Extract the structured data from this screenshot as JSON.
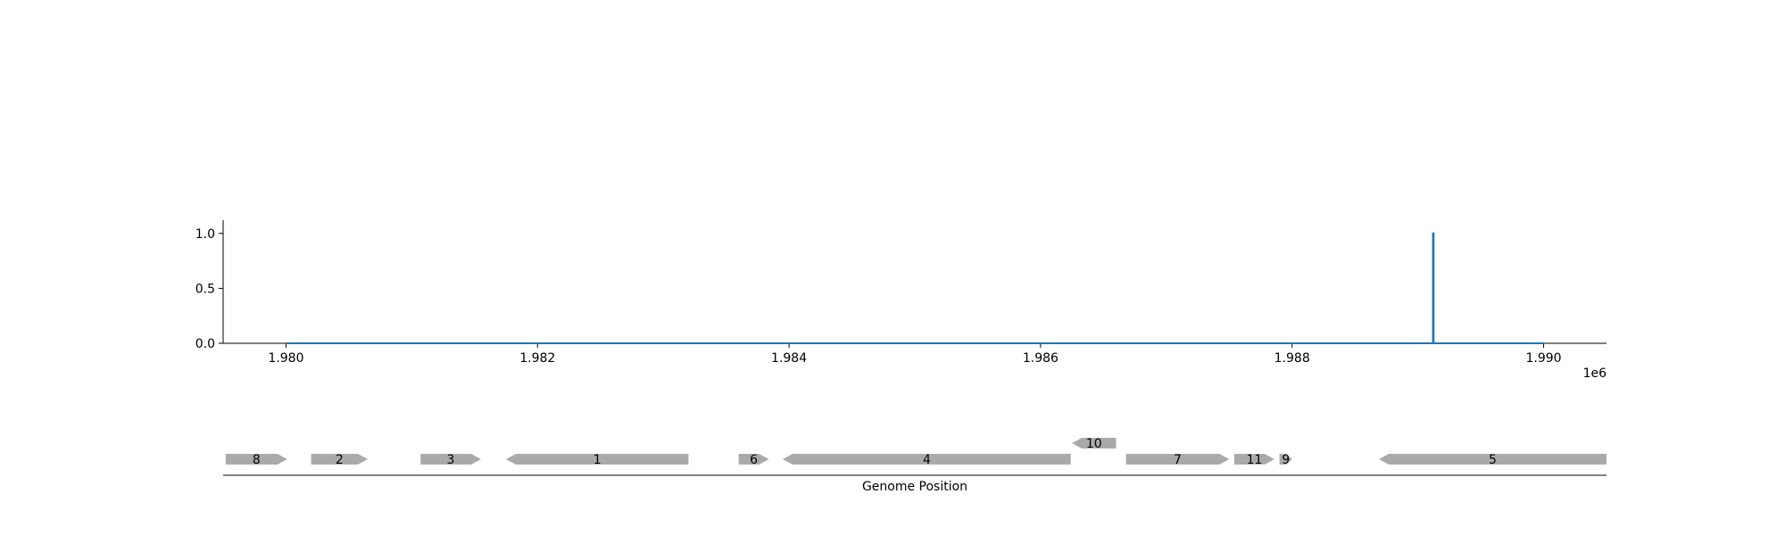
{
  "chart_data": {
    "type": "line",
    "title": "",
    "xlabel": "",
    "ylabel": "",
    "x_offset_label": "1e6",
    "xlim": [
      1979500,
      1990500
    ],
    "ylim": [
      0,
      1.12
    ],
    "xticks": [
      1980000,
      1982000,
      1984000,
      1986000,
      1988000,
      1990000
    ],
    "xtick_labels": [
      "1.980",
      "1.982",
      "1.984",
      "1.986",
      "1.988",
      "1.990"
    ],
    "yticks": [
      0,
      0.5,
      1.0
    ],
    "ytick_labels": [
      "0.0",
      "0.5",
      "1.0"
    ],
    "grid": false,
    "series": [
      {
        "x": [
          1980000,
          1989120,
          1989120,
          1989125,
          1989125,
          1990000
        ],
        "y": [
          0,
          0,
          1.0,
          1.0,
          0,
          0
        ]
      }
    ],
    "line_color": "#1f77b4",
    "gene_track": {
      "xlabel": "Genome Position",
      "color": "#aaaaaa",
      "genes": [
        {
          "label": "8",
          "start": 1979520,
          "end": 1980010,
          "strand": "+",
          "row": 0
        },
        {
          "label": "2",
          "start": 1980200,
          "end": 1980650,
          "strand": "+",
          "row": 0
        },
        {
          "label": "3",
          "start": 1981070,
          "end": 1981550,
          "strand": "+",
          "row": 0
        },
        {
          "label": "1",
          "start": 1981750,
          "end": 1983200,
          "strand": "-",
          "row": 0
        },
        {
          "label": "6",
          "start": 1983600,
          "end": 1983840,
          "strand": "+",
          "row": 0
        },
        {
          "label": "4",
          "start": 1983950,
          "end": 1986240,
          "strand": "-",
          "row": 0
        },
        {
          "label": "10",
          "start": 1986250,
          "end": 1986600,
          "strand": "-",
          "row": 1
        },
        {
          "label": "7",
          "start": 1986680,
          "end": 1987500,
          "strand": "+",
          "row": 0
        },
        {
          "label": "11",
          "start": 1987540,
          "end": 1987860,
          "strand": "+",
          "row": 0
        },
        {
          "label": "9",
          "start": 1987900,
          "end": 1988000,
          "strand": "+",
          "row": 0
        },
        {
          "label": "5",
          "start": 1988690,
          "end": 1990500,
          "strand": "-",
          "row": 0
        }
      ]
    }
  }
}
